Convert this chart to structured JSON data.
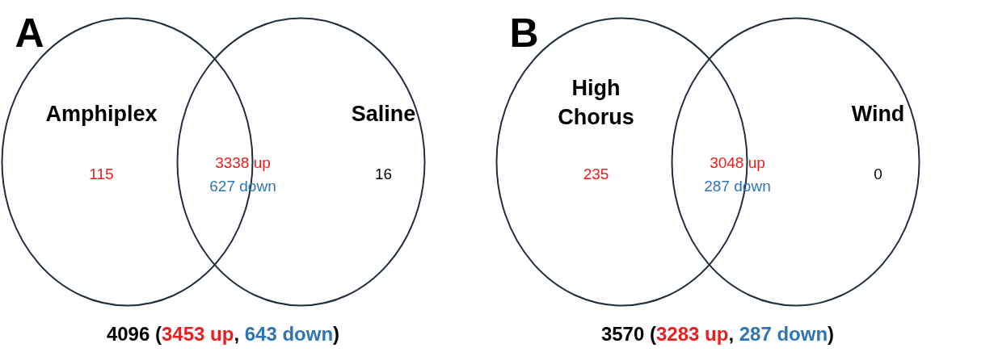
{
  "chart_data": [
    {
      "type": "other",
      "title": "A",
      "categories": [
        "Amphiplex",
        "Saline"
      ],
      "data_labels": true,
      "colors": [
        "#ee1c1c",
        "#2e75b6"
      ],
      "series": [
        {
          "color": "#ee1c1c",
          "values": [
            115,
            null
          ]
        },
        {
          "color": "#000000",
          "values": [
            null,
            16
          ]
        }
      ],
      "annotations": [
        "3338 up",
        "627 down",
        "4096 (3453 up, 643 down)"
      ]
    },
    {
      "type": "other",
      "title": "B",
      "categories": [
        "High Chorus",
        "Wind"
      ],
      "data_labels": true,
      "colors": [
        "#ee1c1c",
        "#2e75b6"
      ],
      "series": [
        {
          "color": "#ee1c1c",
          "values": [
            235,
            null
          ]
        },
        {
          "color": "#000000",
          "values": [
            null,
            0
          ]
        }
      ],
      "annotations": [
        "3048 up",
        "287 down",
        "3570 (3283 up, 287 down)"
      ]
    }
  ]
}
